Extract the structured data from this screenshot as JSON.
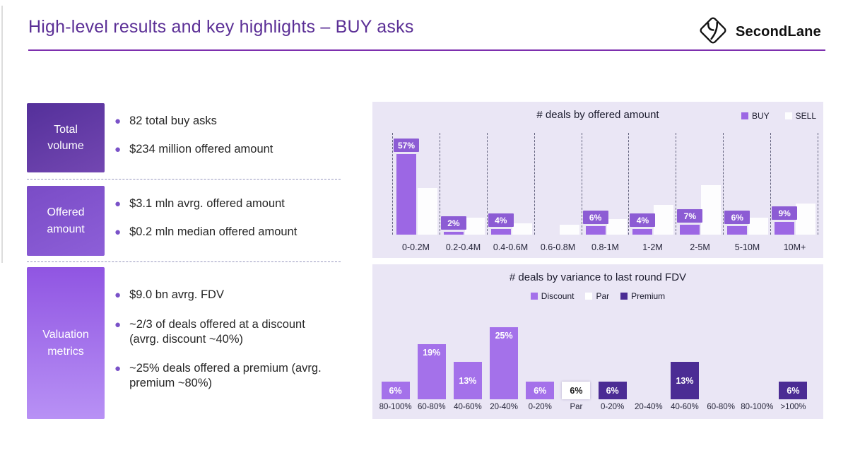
{
  "slide": {
    "title": "High-level results and key highlights – BUY asks",
    "logo_text": "SecondLane"
  },
  "metrics": [
    {
      "box_line1": "Total",
      "box_line2": "volume",
      "bullets": [
        "82 total buy asks",
        "$234 million offered amount"
      ]
    },
    {
      "box_line1": "Offered",
      "box_line2": "amount",
      "bullets": [
        "$3.1 mln avrg. offered amount",
        "$0.2 mln median offered amount"
      ]
    },
    {
      "box_line1": "Valuation",
      "box_line2": "metrics",
      "bullets": [
        "$9.0 bn avrg. FDV",
        "~2/3 of deals offered at a discount (avrg. discount ~40%)",
        "~25% deals offered a premium (avrg. premium ~80%)"
      ]
    }
  ],
  "chart_data": [
    {
      "type": "bar",
      "title": "# deals by offered amount",
      "categories": [
        "0-0.2M",
        "0.2-0.4M",
        "0.4-0.6M",
        "0.6-0.8M",
        "0.8-1M",
        "1-2M",
        "2-5M",
        "5-10M",
        "10M+"
      ],
      "series": [
        {
          "name": "BUY",
          "color": "#9c67e4",
          "values": [
            57,
            2,
            4,
            0,
            6,
            4,
            7,
            6,
            9
          ],
          "labels": [
            "57%",
            "2%",
            "4%",
            "",
            "6%",
            "4%",
            "7%",
            "6%",
            "9%"
          ]
        },
        {
          "name": "SELL",
          "color": "#fdfdfe",
          "values": [
            33,
            12,
            8,
            7,
            11,
            21,
            35,
            12,
            22
          ],
          "labels": [
            "",
            "",
            "",
            "",
            "",
            "",
            "",
            "",
            ""
          ]
        }
      ],
      "value_unit": "%",
      "ylim": [
        0,
        60
      ],
      "legend_position": "top-right",
      "grid": "dashed vertical separators between categories",
      "note": "SELL values estimated from bar heights; only BUY bars carry data labels"
    },
    {
      "type": "bar",
      "title": "# deals by variance to last round FDV",
      "categories": [
        "80-100%",
        "60-80%",
        "40-60%",
        "20-40%",
        "0-20%",
        "Par",
        "0-20%",
        "20-40%",
        "40-60%",
        "60-80%",
        "80-100%",
        ">100%"
      ],
      "values": [
        6,
        19,
        13,
        25,
        6,
        6,
        6,
        0,
        13,
        0,
        0,
        6
      ],
      "labels": [
        "6%",
        "19%",
        "13%",
        "25%",
        "6%",
        "6%",
        "6%",
        "",
        "13%",
        "",
        "",
        "6%"
      ],
      "group_of_category": [
        "Discount",
        "Discount",
        "Discount",
        "Discount",
        "Discount",
        "Par",
        "Premium",
        "Premium",
        "Premium",
        "Premium",
        "Premium",
        "Premium"
      ],
      "legend": [
        {
          "name": "Discount",
          "color": "#a471ea"
        },
        {
          "name": "Par",
          "color": "#ffffff"
        },
        {
          "name": "Premium",
          "color": "#4b2c94"
        }
      ],
      "value_unit": "%",
      "ylim": [
        0,
        28
      ],
      "legend_position": "top-center",
      "grid": "off"
    }
  ]
}
